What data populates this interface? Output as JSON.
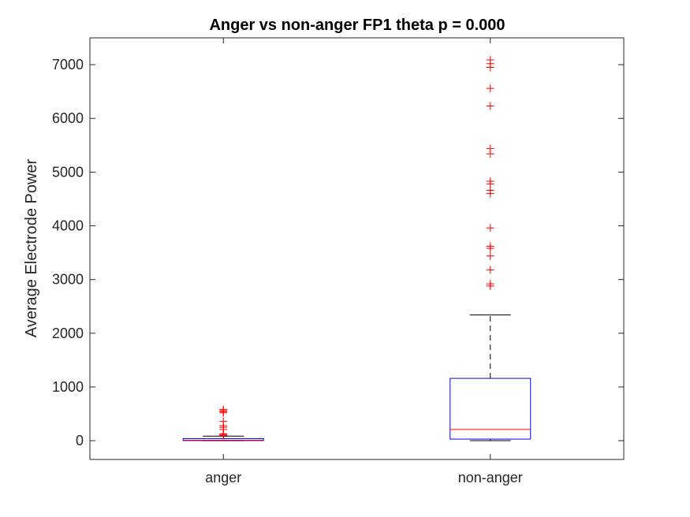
{
  "chart_data": {
    "type": "boxplot",
    "title": "Anger vs non-anger FP1 theta p = 0.000",
    "xlabel": "",
    "ylabel": "Average Electrode Power",
    "ylim": [
      -350,
      7500
    ],
    "yticks": [
      0,
      1000,
      2000,
      3000,
      4000,
      5000,
      6000,
      7000
    ],
    "grid": false,
    "categories": [
      "anger",
      "non-anger"
    ],
    "boxes": [
      {
        "name": "anger",
        "min": 0,
        "q1": 2,
        "median": 10,
        "q3": 40,
        "whisker_high": 85,
        "outliers": [
          100,
          115,
          130,
          210,
          250,
          280,
          360,
          520,
          540,
          560,
          580
        ]
      },
      {
        "name": "non-anger",
        "min": 0,
        "q1": 30,
        "median": 210,
        "q3": 1160,
        "whisker_high": 2340,
        "outliers": [
          2880,
          2920,
          3180,
          3440,
          3580,
          3620,
          3960,
          4600,
          4660,
          4780,
          4830,
          5340,
          5440,
          6230,
          6560,
          6950,
          7020,
          7090
        ]
      }
    ],
    "colors": {
      "box": "#0000ff",
      "median": "#ff0000",
      "whisker": "#000000",
      "outlier": "#ff0000",
      "axes": "#262626"
    }
  }
}
